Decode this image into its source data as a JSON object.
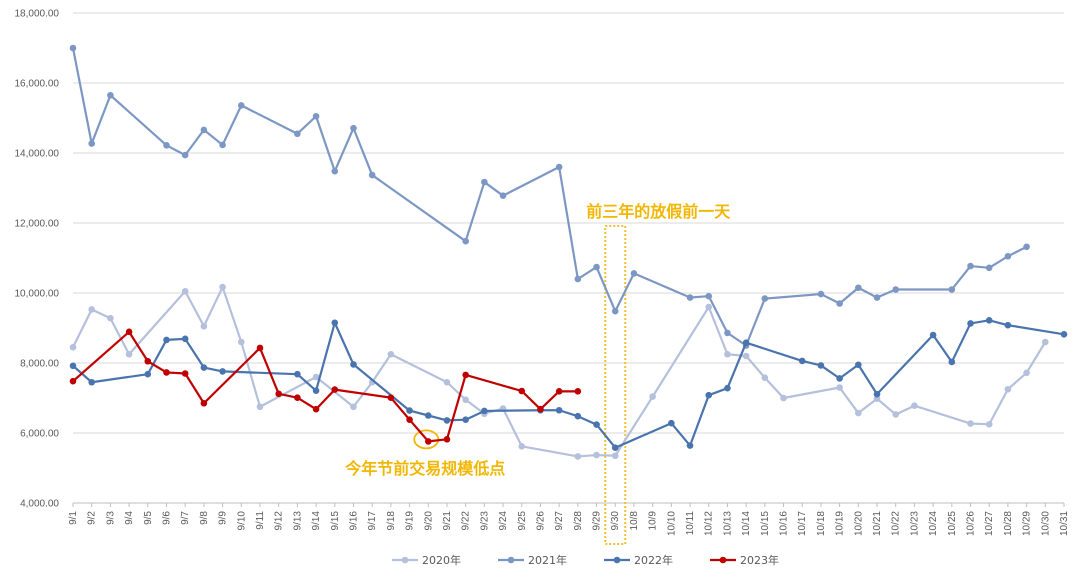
{
  "chart_data": {
    "type": "line",
    "ylim": [
      4000,
      18000
    ],
    "yticks": [
      "4,000.00",
      "6,000.00",
      "8,000.00",
      "10,000.00",
      "12,000.00",
      "14,000.00",
      "16,000.00",
      "18,000.00"
    ],
    "ytick_values": [
      4000,
      6000,
      8000,
      10000,
      12000,
      14000,
      16000,
      18000
    ],
    "grid": true,
    "legend_position": "bottom",
    "categories": [
      "9/1",
      "9/2",
      "9/3",
      "9/4",
      "9/5",
      "9/6",
      "9/7",
      "9/8",
      "9/9",
      "9/10",
      "9/11",
      "9/12",
      "9/13",
      "9/14",
      "9/15",
      "9/16",
      "9/17",
      "9/18",
      "9/19",
      "9/20",
      "9/21",
      "9/22",
      "9/23",
      "9/24",
      "9/25",
      "9/26",
      "9/27",
      "9/28",
      "9/29",
      "9/30",
      "10/8",
      "10/9",
      "10/10",
      "10/11",
      "10/12",
      "10/13",
      "10/14",
      "10/15",
      "10/16",
      "10/17",
      "10/18",
      "10/19",
      "10/20",
      "10/21",
      "10/22",
      "10/23",
      "10/24",
      "10/25",
      "10/26",
      "10/27",
      "10/28",
      "10/29",
      "10/30",
      "10/31"
    ],
    "series": [
      {
        "name": "2020年",
        "color": "#b4c0dc",
        "values": [
          8450,
          9530,
          9280,
          8250,
          null,
          null,
          10050,
          9050,
          10170,
          8600,
          6750,
          null,
          null,
          7600,
          null,
          6750,
          7450,
          8250,
          null,
          null,
          7450,
          6950,
          6550,
          6700,
          5620,
          null,
          null,
          5330,
          5370,
          5350,
          null,
          7040,
          null,
          null,
          9600,
          8250,
          8200,
          7580,
          7000,
          null,
          null,
          7300,
          6570,
          6980,
          6530,
          6780,
          null,
          null,
          6270,
          6250,
          7250,
          7720,
          8600,
          null
        ]
      },
      {
        "name": "2021年",
        "color": "#7d97c4",
        "values": [
          17000,
          14270,
          15650,
          null,
          null,
          14220,
          13940,
          14660,
          14230,
          15360,
          null,
          null,
          14550,
          15050,
          13480,
          14710,
          13370,
          null,
          null,
          null,
          null,
          11480,
          13170,
          12780,
          null,
          null,
          13600,
          10400,
          10740,
          9480,
          10560,
          null,
          null,
          9870,
          9910,
          8860,
          8500,
          9840,
          null,
          null,
          9970,
          9700,
          10150,
          9870,
          10100,
          null,
          null,
          10100,
          10770,
          10720,
          11050,
          11320,
          null,
          null
        ]
      },
      {
        "name": "2022年",
        "color": "#4a74ad",
        "values": [
          7920,
          7450,
          null,
          null,
          7680,
          8660,
          8690,
          7870,
          7760,
          null,
          null,
          null,
          7680,
          7210,
          9150,
          7960,
          null,
          null,
          6640,
          6500,
          6360,
          6380,
          6630,
          null,
          null,
          6650,
          6650,
          6480,
          6240,
          5580,
          null,
          null,
          6280,
          5640,
          7080,
          7280,
          8580,
          null,
          null,
          8060,
          7930,
          7560,
          7950,
          7110,
          null,
          null,
          8800,
          8030,
          9130,
          9220,
          9080,
          null,
          null,
          8820
        ]
      },
      {
        "name": "2023年",
        "color": "#c00000",
        "values": [
          7480,
          null,
          null,
          8890,
          8050,
          7730,
          7700,
          6850,
          null,
          null,
          8430,
          7120,
          7010,
          6680,
          7240,
          null,
          null,
          7010,
          6380,
          5760,
          5820,
          7660,
          null,
          null,
          7200,
          6680,
          7190,
          7190,
          null,
          null,
          null,
          null,
          null,
          null,
          null,
          null,
          null,
          null,
          null,
          null,
          null,
          null,
          null,
          null,
          null,
          null,
          null,
          null,
          null,
          null,
          null,
          null,
          null,
          null
        ]
      }
    ],
    "annotations": [
      {
        "text": "前三年的放假前一天",
        "category": "9/30"
      },
      {
        "text": "今年节前交易规模低点",
        "category": "9/20"
      }
    ]
  }
}
